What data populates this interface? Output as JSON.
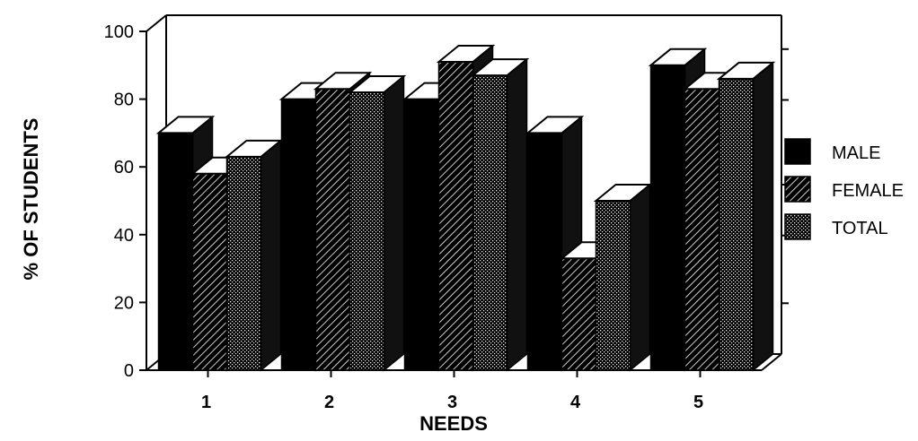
{
  "chart_data": {
    "type": "bar",
    "style": "3d",
    "title": "",
    "xlabel": "NEEDS",
    "ylabel": "% OF STUDENTS",
    "ylim": [
      0,
      100
    ],
    "yticks": [
      "0",
      "20",
      "40",
      "60",
      "80",
      "100"
    ],
    "categories": [
      "1",
      "2",
      "3",
      "4",
      "5"
    ],
    "series": [
      {
        "name": "MALE",
        "values": [
          70,
          80,
          80,
          70,
          90
        ],
        "color": "#000000",
        "pattern": "solid"
      },
      {
        "name": "FEMALE",
        "values": [
          58,
          83,
          91,
          33,
          83
        ],
        "color": "#000000",
        "pattern": "hatched"
      },
      {
        "name": "TOTAL",
        "values": [
          63,
          82,
          87,
          50,
          86
        ],
        "color": "#000000",
        "pattern": "stippled"
      }
    ],
    "legend_position": "right",
    "grid": false
  }
}
